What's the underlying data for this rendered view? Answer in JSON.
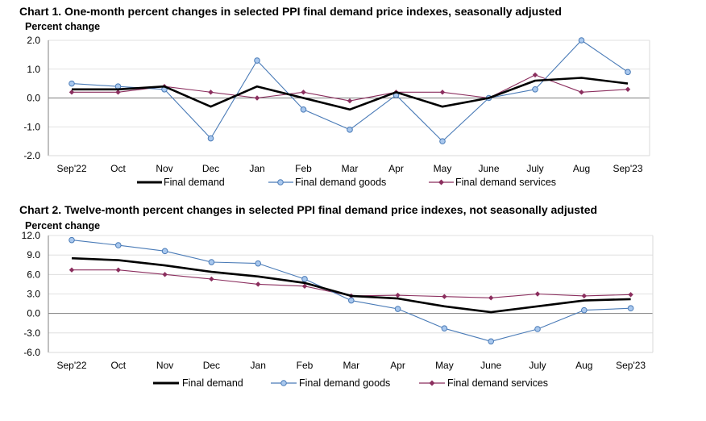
{
  "colors": {
    "final_demand": "#000000",
    "goods": "#4a7bb7",
    "goods_marker_fill": "#a9c8ee",
    "services": "#8b2e5e",
    "grid": "#d9d9d9",
    "axis": "#808080"
  },
  "chart_data": [
    {
      "type": "line",
      "title": "Chart 1. One-month percent changes in selected PPI final demand price indexes, seasonally adjusted",
      "ylabel": "Percent change",
      "xlabel": "",
      "ylim": [
        -2.0,
        2.0
      ],
      "yticks": [
        "2.0",
        "1.0",
        "0.0",
        "-1.0",
        "-2.0"
      ],
      "ytick_values": [
        2.0,
        1.0,
        0.0,
        -1.0,
        -2.0
      ],
      "grid": true,
      "legend": "bottom",
      "categories": [
        "Sep'22",
        "Oct",
        "Nov",
        "Dec",
        "Jan",
        "Feb",
        "Mar",
        "Apr",
        "May",
        "June",
        "July",
        "Aug",
        "Sep'23"
      ],
      "series": [
        {
          "name": "Final demand",
          "values": [
            0.3,
            0.3,
            0.4,
            -0.3,
            0.4,
            0.0,
            -0.4,
            0.2,
            -0.3,
            0.0,
            0.6,
            0.7,
            0.5
          ]
        },
        {
          "name": "Final demand goods",
          "values": [
            0.5,
            0.4,
            0.3,
            -1.4,
            1.3,
            -0.4,
            -1.1,
            0.1,
            -1.5,
            0.0,
            0.3,
            2.0,
            0.9
          ]
        },
        {
          "name": "Final demand services",
          "values": [
            0.2,
            0.2,
            0.4,
            0.2,
            0.0,
            0.2,
            -0.1,
            0.2,
            0.2,
            0.0,
            0.8,
            0.2,
            0.3
          ]
        }
      ]
    },
    {
      "type": "line",
      "title": "Chart 2. Twelve-month percent changes in selected PPI final demand price indexes, not seasonally adjusted",
      "ylabel": "Percent change",
      "xlabel": "",
      "ylim": [
        -6.0,
        12.0
      ],
      "yticks": [
        "12.0",
        "9.0",
        "6.0",
        "3.0",
        "0.0",
        "-3.0",
        "-6.0"
      ],
      "ytick_values": [
        12.0,
        9.0,
        6.0,
        3.0,
        0.0,
        -3.0,
        -6.0
      ],
      "grid": true,
      "legend": "bottom",
      "categories": [
        "Sep'22",
        "Oct",
        "Nov",
        "Dec",
        "Jan",
        "Feb",
        "Mar",
        "Apr",
        "May",
        "June",
        "July",
        "Aug",
        "Sep'23"
      ],
      "series": [
        {
          "name": "Final demand",
          "values": [
            8.5,
            8.2,
            7.4,
            6.4,
            5.7,
            4.7,
            2.7,
            2.3,
            1.1,
            0.2,
            1.1,
            2.0,
            2.2
          ]
        },
        {
          "name": "Final demand goods",
          "values": [
            11.3,
            10.5,
            9.6,
            7.9,
            7.7,
            5.3,
            2.0,
            0.7,
            -2.3,
            -4.3,
            -2.4,
            0.5,
            0.8
          ]
        },
        {
          "name": "Final demand services",
          "values": [
            6.7,
            6.7,
            6.0,
            5.3,
            4.5,
            4.2,
            2.7,
            2.8,
            2.6,
            2.4,
            3.0,
            2.7,
            2.9
          ]
        }
      ]
    }
  ]
}
